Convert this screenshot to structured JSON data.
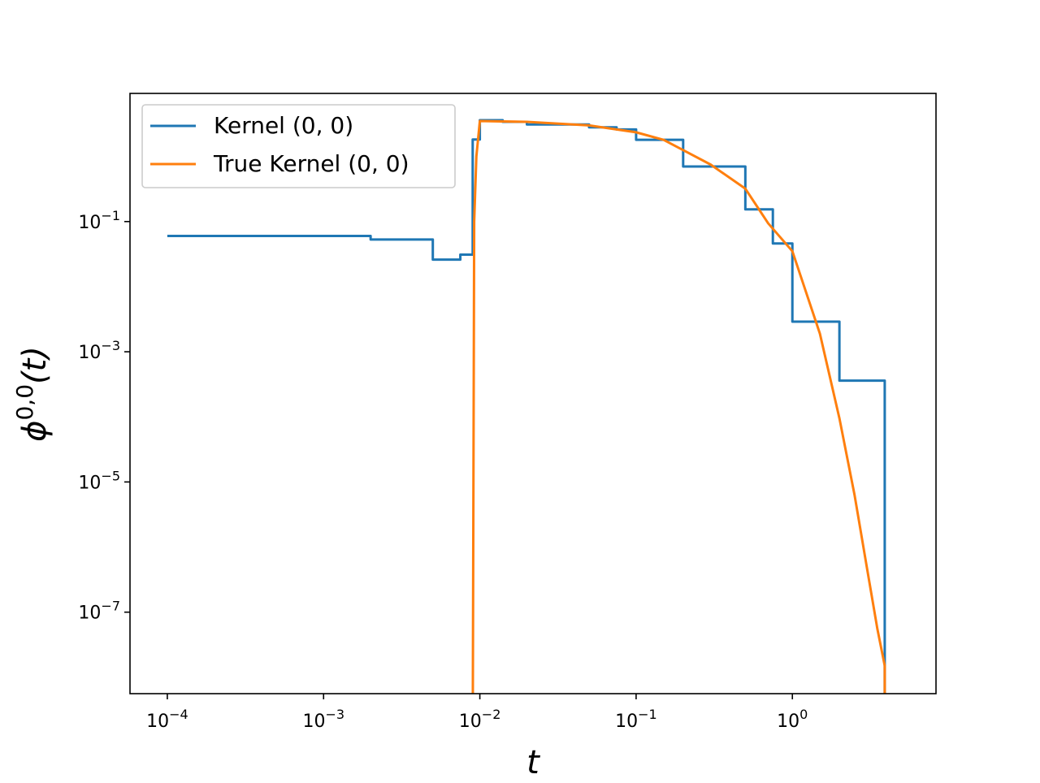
{
  "chart_data": {
    "type": "line",
    "xlabel": "t",
    "ylabel": "ϕ0,0(t)",
    "xscale": "log",
    "yscale": "log",
    "xlim": [
      5.77e-05,
      8.3
    ],
    "ylim": [
      5.6e-09,
      9.3
    ],
    "xticks": [
      {
        "value": 0.0001,
        "label": "10−4"
      },
      {
        "value": 0.001,
        "label": "10−3"
      },
      {
        "value": 0.01,
        "label": "10−2"
      },
      {
        "value": 0.1,
        "label": "10−1"
      },
      {
        "value": 1,
        "label": "100"
      }
    ],
    "yticks": [
      {
        "value": 0.1,
        "label": "10−1"
      },
      {
        "value": 0.001,
        "label": "10−3"
      },
      {
        "value": 1e-05,
        "label": "10−5"
      },
      {
        "value": 1e-07,
        "label": "10−7"
      }
    ],
    "legend": "upper left",
    "series": [
      {
        "name": "Kernel (0, 0)",
        "color": "#1f77b4",
        "x": [
          0.0001,
          0.002,
          0.002,
          0.005,
          0.005,
          0.0075,
          0.0075,
          0.009,
          0.009,
          0.01,
          0.01,
          0.014,
          0.014,
          0.02,
          0.02,
          0.05,
          0.05,
          0.075,
          0.075,
          0.1,
          0.1,
          0.2,
          0.2,
          0.5,
          0.5,
          0.75,
          0.75,
          1,
          1,
          2,
          2,
          3.9,
          3.9
        ],
        "values": [
          0.06,
          0.06,
          0.053,
          0.053,
          0.026,
          0.026,
          0.031,
          0.031,
          1.82,
          1.82,
          3.6,
          3.6,
          3.4,
          3.4,
          3.1,
          3.1,
          2.8,
          2.8,
          2.6,
          2.6,
          1.8,
          1.8,
          0.7,
          0.7,
          0.154,
          0.154,
          0.046,
          0.046,
          0.0029,
          0.0029,
          0.00036,
          0.00036,
          1e-09
        ]
      },
      {
        "name": "True Kernel (0, 0)",
        "color": "#ff7f0e",
        "x": [
          0.009,
          0.0092,
          0.0095,
          0.01,
          0.02,
          0.05,
          0.1,
          0.15,
          0.2,
          0.3,
          0.5,
          0.7,
          1,
          1.5,
          2,
          2.5,
          3,
          3.5,
          3.9,
          3.9
        ],
        "values": [
          1e-09,
          0.1,
          1.0,
          3.5,
          3.4,
          3.0,
          2.35,
          1.8,
          1.25,
          0.75,
          0.32,
          0.094,
          0.035,
          0.0019,
          9.5e-05,
          6.3e-06,
          4.8e-07,
          5.5e-08,
          1.5e-08,
          1e-09
        ]
      }
    ]
  }
}
